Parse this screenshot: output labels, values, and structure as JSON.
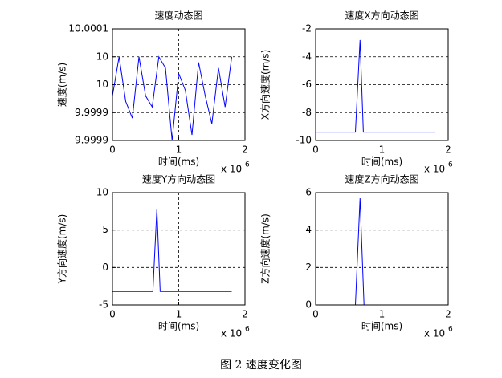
{
  "chart_data": [
    {
      "type": "line",
      "title": "速度动态图",
      "xlabel": "时间(ms)",
      "ylabel": "速度(m/s)",
      "x": [
        0,
        100000,
        200000,
        300000,
        400000,
        500000,
        600000,
        700000,
        800000,
        900000,
        1000000,
        1100000,
        1200000,
        1300000,
        1400000,
        1500000,
        1600000,
        1700000,
        1800000
      ],
      "values": [
        9.99998,
        10.00005,
        9.99997,
        9.99994,
        10.00005,
        9.99998,
        9.99996,
        10.00005,
        10.00003,
        9.9999,
        10.00002,
        9.99999,
        9.99991,
        10.00004,
        9.99998,
        9.99993,
        10.00003,
        9.99996,
        10.00005
      ],
      "color": "#0000ff",
      "xlim": [
        0,
        2000000
      ],
      "xticks": [
        0,
        {
          "value": 1000000,
          "label": "1"
        },
        {
          "value": 2000000,
          "label": "2"
        }
      ],
      "x_multiplier": "x 10",
      "x_multiplier_exp": "6",
      "ylim": [
        9.9999,
        10.0001
      ],
      "yticks": [
        {
          "value": 9.9999,
          "label": "9.9999"
        },
        {
          "value": 9.99995,
          "label": "9.9999"
        },
        {
          "value": 10,
          "label": "10"
        },
        {
          "value": 10.00005,
          "label": "10"
        },
        {
          "value": 10.0001,
          "label": "10.0001"
        }
      ],
      "grid": true
    },
    {
      "type": "line",
      "title": "速度X方向动态图",
      "xlabel": "时间(ms)",
      "ylabel": "X方向速度(m/s)",
      "x": [
        0,
        600000,
        670000,
        720000,
        1800000
      ],
      "values": [
        -9.4,
        -9.4,
        -2.8,
        -9.4,
        -9.4
      ],
      "color": "#0000ff",
      "xlim": [
        0,
        2000000
      ],
      "xticks": [
        0,
        {
          "value": 1000000,
          "label": "1"
        },
        {
          "value": 2000000,
          "label": "2"
        }
      ],
      "x_multiplier": "x 10",
      "x_multiplier_exp": "6",
      "ylim": [
        -10,
        -2
      ],
      "yticks": [
        -10,
        -8,
        -6,
        -4,
        -2
      ],
      "grid": true
    },
    {
      "type": "line",
      "title": "速度Y方向动态图",
      "xlabel": "时间(ms)",
      "ylabel": "Y方向速度(m/s)",
      "x": [
        0,
        610000,
        670000,
        720000,
        1800000
      ],
      "values": [
        -3.2,
        -3.2,
        7.8,
        -3.2,
        -3.2
      ],
      "color": "#0000ff",
      "xlim": [
        0,
        2000000
      ],
      "xticks": [
        0,
        {
          "value": 1000000,
          "label": "1"
        },
        {
          "value": 2000000,
          "label": "2"
        }
      ],
      "x_multiplier": "x 10",
      "x_multiplier_exp": "6",
      "ylim": [
        -5,
        10
      ],
      "yticks": [
        -5,
        0,
        5,
        10
      ],
      "grid": true
    },
    {
      "type": "line",
      "title": "速度Z方向动态图",
      "xlabel": "时间(ms)",
      "ylabel": "Z方向速度(m/s)",
      "x": [
        0,
        600000,
        670000,
        730000,
        2000000
      ],
      "values": [
        0,
        0,
        5.7,
        0,
        0
      ],
      "color": "#0000ff",
      "xlim": [
        0,
        2000000
      ],
      "xticks": [
        0,
        {
          "value": 1000000,
          "label": "1"
        },
        {
          "value": 2000000,
          "label": "2"
        }
      ],
      "x_multiplier": "x 10",
      "x_multiplier_exp": "6",
      "ylim": [
        0,
        6
      ],
      "yticks": [
        0,
        2,
        4,
        6
      ],
      "grid": true
    }
  ],
  "caption": "图 2  速度变化图"
}
